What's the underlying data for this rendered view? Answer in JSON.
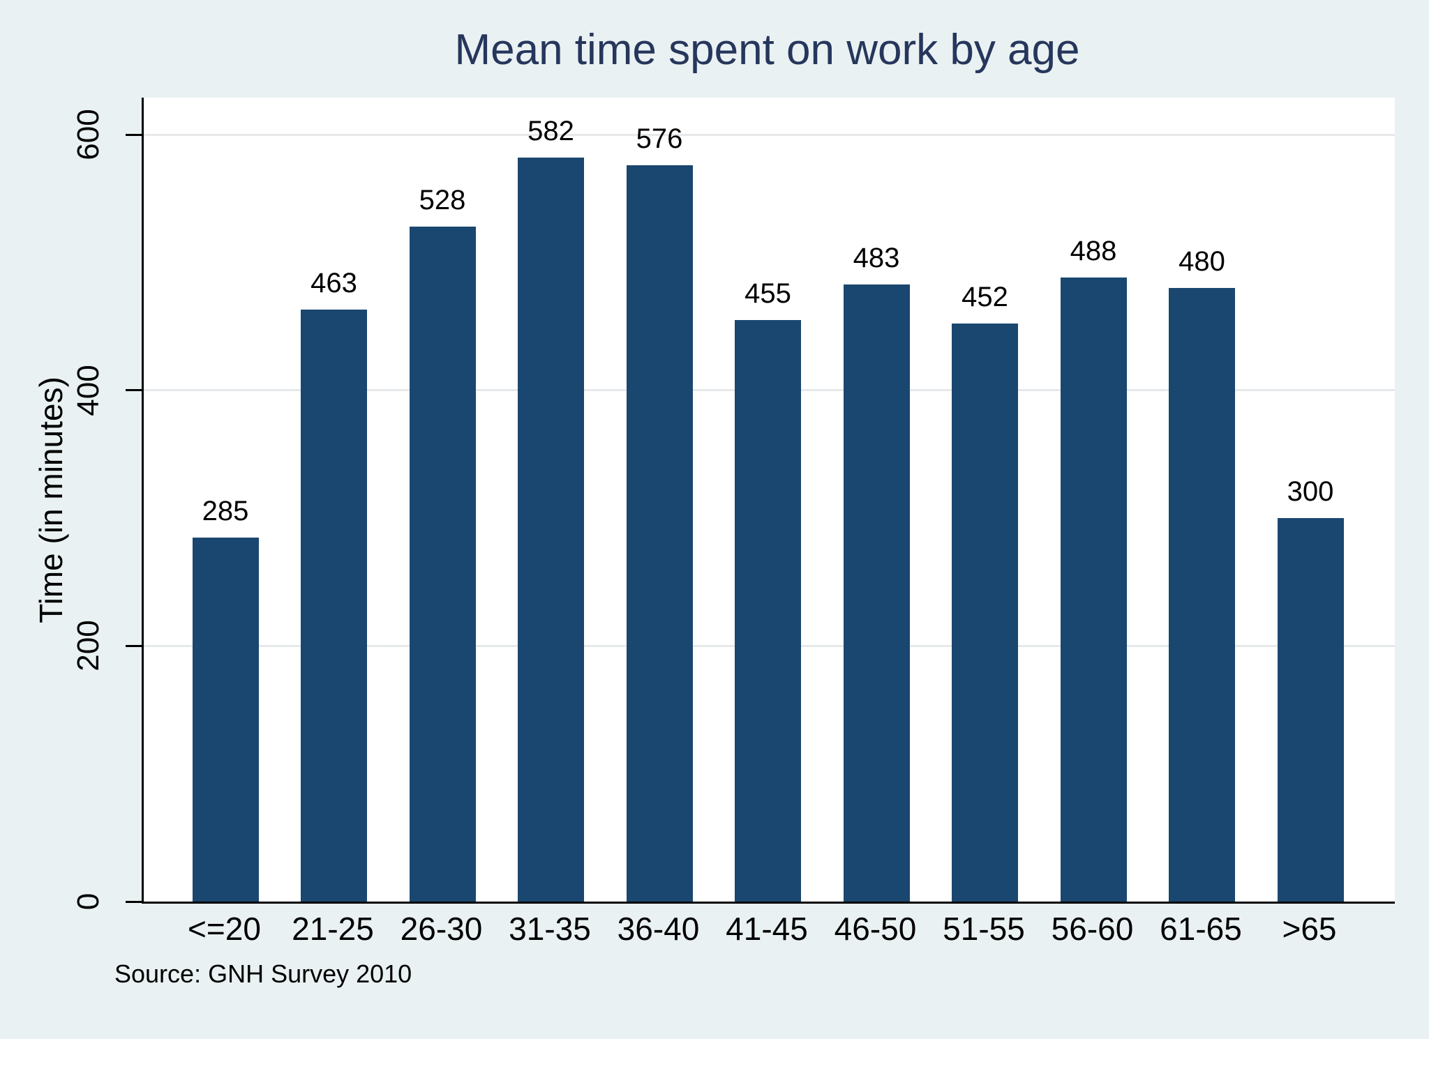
{
  "title": "Mean time spent on work by age",
  "source_note": "Source: GNH Survey 2010",
  "colors": {
    "canvas_background": "#e9f1f2",
    "plot_background": "#ffffff",
    "bar": "#1a476f",
    "gridline": "#e6e9eb",
    "title_text": "#26365c",
    "axis_text": "#000000"
  },
  "chart_data": {
    "type": "bar",
    "title": "Mean time spent on work by age",
    "xlabel": "",
    "ylabel": "Time (in minutes)",
    "categories": [
      "<=20",
      "21-25",
      "26-30",
      "31-35",
      "36-40",
      "41-45",
      "46-50",
      "51-55",
      "56-60",
      "61-65",
      ">65"
    ],
    "values": [
      285,
      463,
      528,
      582,
      576,
      455,
      483,
      452,
      488,
      480,
      300
    ],
    "value_labels_shown": true,
    "yticks": [
      0,
      200,
      400,
      600
    ],
    "ylim": [
      0,
      630
    ],
    "grid": true,
    "legend": "none",
    "source_note": "Source: GNH Survey 2010"
  }
}
